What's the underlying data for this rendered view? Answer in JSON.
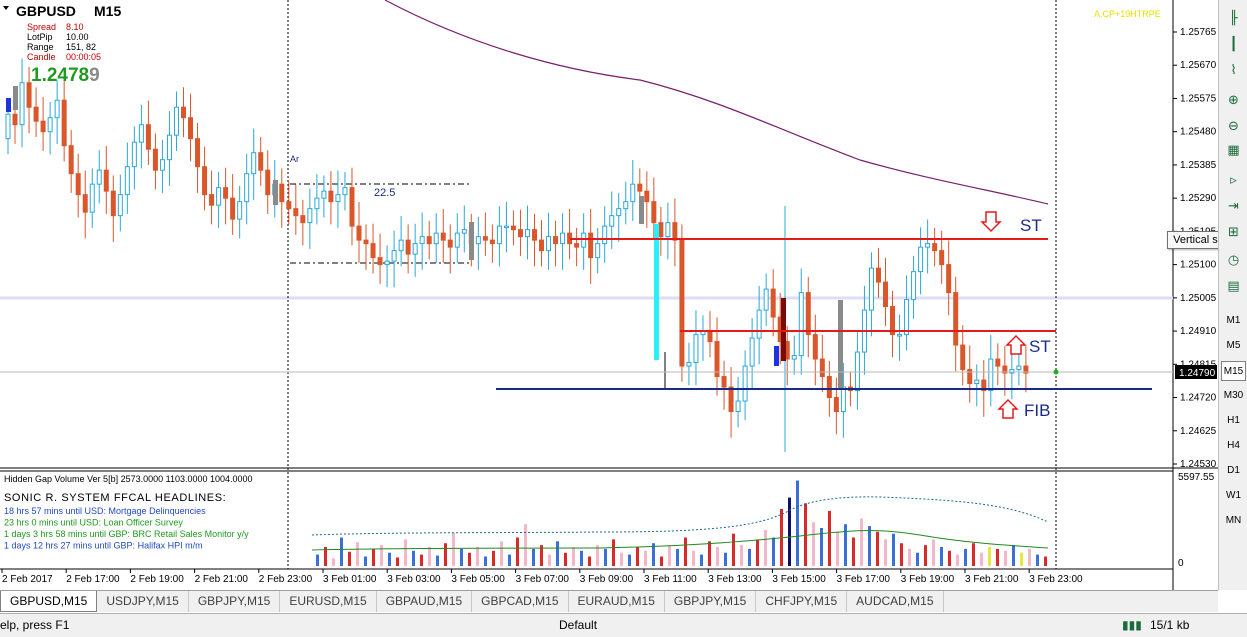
{
  "symbol": "GBPUSD",
  "timeframe": "M15",
  "info_panel": {
    "spread_label": "Spread",
    "spread_value": "8.10",
    "lotpip_label": "LotPip",
    "lotpip_value": "10.00",
    "range_label": "Range",
    "range_value": "151, 82",
    "candle_label": "Candle",
    "candle_value": "00:00:05",
    "price_main": "1.2478",
    "price_last_digit": "9"
  },
  "watermark": "A.CP+19HTRPE",
  "annotations": {
    "box_label": "22.5",
    "ar_label": "Ar",
    "st_top": "ST",
    "st_mid": "ST",
    "fib": "FIB"
  },
  "current_price_label": "1.24790",
  "price_axis": {
    "ticks": [
      "1.25765",
      "1.25670",
      "1.25575",
      "1.25480",
      "1.25385",
      "1.25290",
      "1.25195",
      "1.25100",
      "1.25005",
      "1.24910",
      "1.24815",
      "1.24720",
      "1.24625",
      "1.24530"
    ]
  },
  "time_axis": {
    "ticks": [
      "2 Feb 2017",
      "2 Feb 17:00",
      "2 Feb 19:00",
      "2 Feb 21:00",
      "2 Feb 23:00",
      "3 Feb 01:00",
      "3 Feb 03:00",
      "3 Feb 05:00",
      "3 Feb 07:00",
      "3 Feb 09:00",
      "3 Feb 11:00",
      "3 Feb 13:00",
      "3 Feb 15:00",
      "3 Feb 17:00",
      "3 Feb 19:00",
      "3 Feb 21:00",
      "3 Feb 23:00"
    ]
  },
  "subwindow": {
    "title": "Hidden Gap Volume Ver 5[b] 2573.0000 1103.0000 1004.0000",
    "max_label": "5597.55",
    "min_label": "0",
    "headlines_title": "SONIC R. SYSTEM  FFCAL HEADLINES:",
    "headlines": [
      {
        "text": "18 hrs 57 mins until USD: Mortgage Delinquencies",
        "color": "#1f49c7"
      },
      {
        "text": "23 hrs 0 mins until USD: Loan Officer Survey",
        "color": "#1f9a1f"
      },
      {
        "text": "1 days 3 hrs 58 mins until GBP: BRC Retail Sales Monitor y/y",
        "color": "#1f9a1f"
      },
      {
        "text": "1 days 12 hrs 27 mins until GBP: Halifax HPI m/m",
        "color": "#1f49c7"
      }
    ]
  },
  "tabs": [
    "GBPUSD,M15",
    "USDJPY,M15",
    "GBPJPY,M15",
    "EURUSD,M15",
    "GBPAUD,M15",
    "GBPCAD,M15",
    "EURAUD,M15",
    "GBPJPY,M15",
    "CHFJPY,M15",
    "AUDCAD,M15"
  ],
  "status": {
    "help": "elp, press F1",
    "profile": "Default",
    "traffic": "15/1 kb"
  },
  "tooltip": "Vertical scale",
  "timeframes": [
    "M1",
    "M5",
    "M15",
    "M30",
    "H1",
    "H4",
    "D1",
    "W1",
    "MN"
  ],
  "colors": {
    "bull": "#2aa8d8",
    "bear": "#d9572b",
    "st_line": "#e41b1b",
    "fib_line": "#1a2a8c",
    "ma_line": "#7a1f6e"
  },
  "chart_data": {
    "type": "candlestick",
    "symbol": "GBPUSD",
    "timeframe": "M15",
    "ylim": [
      1.2448,
      1.2585
    ],
    "levels": {
      "st_top": 1.2515,
      "st_mid": 1.249,
      "fib": 1.2474,
      "current": 1.2479
    },
    "closes": [
      1.2553,
      1.255,
      1.2562,
      1.2555,
      1.2551,
      1.2548,
      1.2552,
      1.2557,
      1.2544,
      1.2536,
      1.253,
      1.2525,
      1.2533,
      1.2537,
      1.2531,
      1.2524,
      1.253,
      1.2538,
      1.2545,
      1.255,
      1.2543,
      1.2537,
      1.254,
      1.2547,
      1.2555,
      1.2552,
      1.2546,
      1.2538,
      1.253,
      1.2527,
      1.2532,
      1.2529,
      1.2523,
      1.2528,
      1.2536,
      1.2542,
      1.2537,
      1.253,
      1.2533,
      1.2528,
      1.2526,
      1.2524,
      1.2522,
      1.2526,
      1.2529,
      1.2531,
      1.2528,
      1.253,
      1.2532,
      1.2521,
      1.2517,
      1.2516,
      1.2512,
      1.251,
      1.2511,
      1.2514,
      1.2517,
      1.2513,
      1.2516,
      1.2518,
      1.2516,
      1.2519,
      1.2517,
      1.2515,
      1.2519,
      1.252,
      1.2516,
      1.2518,
      1.2517,
      1.2516,
      1.2521,
      1.2521,
      1.252,
      1.2518,
      1.252,
      1.2517,
      1.2514,
      1.2518,
      1.2516,
      1.2519,
      1.2516,
      1.2515,
      1.2519,
      1.2512,
      1.2516,
      1.2521,
      1.2524,
      1.2526,
      1.2528,
      1.2533,
      1.2531,
      1.2528,
      1.2522,
      1.2518,
      1.2522,
      1.2517,
      1.2481,
      1.2482,
      1.249,
      1.2491,
      1.2488,
      1.2478,
      1.2475,
      1.2468,
      1.2471,
      1.2481,
      1.2489,
      1.2497,
      1.2503,
      1.2495,
      1.2488,
      1.2483,
      1.2484,
      1.2502,
      1.249,
      1.2483,
      1.2478,
      1.2472,
      1.2468,
      1.2475,
      1.2474,
      1.2485,
      1.2497,
      1.2509,
      1.2505,
      1.2498,
      1.249,
      1.249,
      1.25,
      1.2508,
      1.2515,
      1.2516,
      1.2514,
      1.251,
      1.2502,
      1.2487,
      1.248,
      1.2476,
      1.2477,
      1.2474,
      1.2483,
      1.2481,
      1.2479,
      1.248,
      1.2481,
      1.2479
    ]
  }
}
